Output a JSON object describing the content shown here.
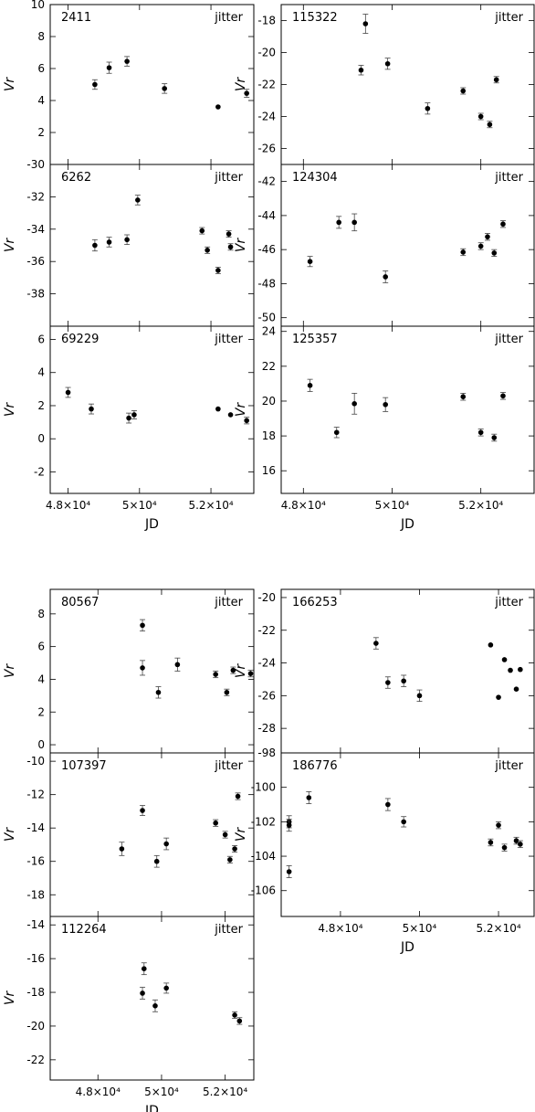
{
  "chart_data": [
    {
      "type": "scatter",
      "id": "2411",
      "annotation": "jitter",
      "ylabel": "Vr",
      "ylim": [
        0,
        10
      ],
      "yticks": [
        2,
        4,
        6,
        8,
        10
      ],
      "xlim": [
        47500,
        53200
      ],
      "xticks": [
        48000,
        50000,
        52000
      ],
      "points": [
        {
          "x": 48750,
          "y": 5.0,
          "err": 0.3
        },
        {
          "x": 49150,
          "y": 6.05,
          "err": 0.35
        },
        {
          "x": 49650,
          "y": 6.45,
          "err": 0.3
        },
        {
          "x": 50700,
          "y": 4.75,
          "err": 0.3
        },
        {
          "x": 52200,
          "y": 3.6,
          "err": 0.05
        },
        {
          "x": 53000,
          "y": 4.45,
          "err": 0.25
        }
      ]
    },
    {
      "type": "scatter",
      "id": "6262",
      "annotation": "jitter",
      "ylabel": "Vr",
      "ylim": [
        -40,
        -30
      ],
      "yticks": [
        -38,
        -36,
        -34,
        -32,
        -30
      ],
      "xlim": [
        47500,
        53200
      ],
      "xticks": [
        48000,
        50000,
        52000
      ],
      "points": [
        {
          "x": 48750,
          "y": -35.0,
          "err": 0.35
        },
        {
          "x": 49150,
          "y": -34.8,
          "err": 0.3
        },
        {
          "x": 49650,
          "y": -34.65,
          "err": 0.3
        },
        {
          "x": 49950,
          "y": -32.2,
          "err": 0.3
        },
        {
          "x": 51750,
          "y": -34.1,
          "err": 0.2
        },
        {
          "x": 51900,
          "y": -35.3,
          "err": 0.2
        },
        {
          "x": 52200,
          "y": -36.55,
          "err": 0.2
        },
        {
          "x": 52500,
          "y": -34.3,
          "err": 0.2
        },
        {
          "x": 52550,
          "y": -35.1,
          "err": 0.2
        }
      ]
    },
    {
      "type": "scatter",
      "id": "69229",
      "annotation": "jitter",
      "ylabel": "Vr",
      "ylim": [
        -3.3,
        6.8
      ],
      "yticks": [
        -2,
        0,
        2,
        4,
        6
      ],
      "xlim": [
        47500,
        53200
      ],
      "xticks": [
        48000,
        50000,
        52000
      ],
      "xlabel": "JD",
      "xtick_labels": [
        "4.8×10⁴",
        "5×10⁴",
        "5.2×10⁴"
      ],
      "points": [
        {
          "x": 48000,
          "y": 2.8,
          "err": 0.3
        },
        {
          "x": 48650,
          "y": 1.8,
          "err": 0.3
        },
        {
          "x": 49700,
          "y": 1.25,
          "err": 0.3
        },
        {
          "x": 49850,
          "y": 1.45,
          "err": 0.25
        },
        {
          "x": 52200,
          "y": 1.8,
          "err": 0.05
        },
        {
          "x": 52550,
          "y": 1.45,
          "err": 0.05
        },
        {
          "x": 53000,
          "y": 1.1,
          "err": 0.2
        }
      ]
    },
    {
      "type": "scatter",
      "id": "115322",
      "annotation": "jitter",
      "ylabel": "Vr",
      "ylim": [
        -27,
        -17
      ],
      "yticks": [
        -26,
        -24,
        -22,
        -20,
        -18
      ],
      "xlim": [
        47500,
        53200
      ],
      "xticks": [
        48000,
        50000,
        52000
      ],
      "points": [
        {
          "x": 49300,
          "y": -21.1,
          "err": 0.3
        },
        {
          "x": 49400,
          "y": -18.2,
          "err": 0.6
        },
        {
          "x": 49900,
          "y": -20.7,
          "err": 0.35
        },
        {
          "x": 50800,
          "y": -23.5,
          "err": 0.35
        },
        {
          "x": 51600,
          "y": -22.4,
          "err": 0.2
        },
        {
          "x": 52000,
          "y": -24.0,
          "err": 0.2
        },
        {
          "x": 52200,
          "y": -24.5,
          "err": 0.2
        },
        {
          "x": 52350,
          "y": -21.7,
          "err": 0.2
        }
      ]
    },
    {
      "type": "scatter",
      "id": "124304",
      "annotation": "jitter",
      "ylabel": "Vr",
      "ylim": [
        -50.5,
        -41
      ],
      "yticks": [
        -50,
        -48,
        -46,
        -44,
        -42
      ],
      "xlim": [
        47500,
        53200
      ],
      "xticks": [
        48000,
        50000,
        52000
      ],
      "points": [
        {
          "x": 48150,
          "y": -46.7,
          "err": 0.3
        },
        {
          "x": 48800,
          "y": -44.4,
          "err": 0.35
        },
        {
          "x": 49150,
          "y": -44.4,
          "err": 0.5
        },
        {
          "x": 49850,
          "y": -47.6,
          "err": 0.35
        },
        {
          "x": 51600,
          "y": -46.15,
          "err": 0.2
        },
        {
          "x": 52000,
          "y": -45.8,
          "err": 0.2
        },
        {
          "x": 52150,
          "y": -45.25,
          "err": 0.2
        },
        {
          "x": 52300,
          "y": -46.2,
          "err": 0.2
        },
        {
          "x": 52500,
          "y": -44.5,
          "err": 0.2
        }
      ]
    },
    {
      "type": "scatter",
      "id": "125357",
      "annotation": "jitter",
      "ylabel": "Vr",
      "ylim": [
        14.7,
        24.3
      ],
      "yticks": [
        16,
        18,
        20,
        22,
        24
      ],
      "xlim": [
        47500,
        53200
      ],
      "xticks": [
        48000,
        50000,
        52000
      ],
      "xlabel": "JD",
      "xtick_labels": [
        "4.8×10⁴",
        "5×10⁴",
        "5.2×10⁴"
      ],
      "points": [
        {
          "x": 48150,
          "y": 20.9,
          "err": 0.35
        },
        {
          "x": 48750,
          "y": 18.2,
          "err": 0.3
        },
        {
          "x": 49150,
          "y": 19.85,
          "err": 0.6
        },
        {
          "x": 49850,
          "y": 19.8,
          "err": 0.4
        },
        {
          "x": 51600,
          "y": 20.25,
          "err": 0.2
        },
        {
          "x": 52000,
          "y": 18.2,
          "err": 0.2
        },
        {
          "x": 52300,
          "y": 17.9,
          "err": 0.2
        },
        {
          "x": 52500,
          "y": 20.3,
          "err": 0.2
        }
      ]
    },
    {
      "type": "scatter",
      "id": "80567",
      "annotation": "jitter",
      "ylabel": "Vr",
      "ylim": [
        -0.5,
        9.5
      ],
      "yticks": [
        0,
        2,
        4,
        6,
        8
      ],
      "xlim": [
        46500,
        52900
      ],
      "xticks": [
        48000,
        50000,
        52000
      ],
      "points": [
        {
          "x": 49400,
          "y": 7.3,
          "err": 0.35
        },
        {
          "x": 49400,
          "y": 4.7,
          "err": 0.45
        },
        {
          "x": 49900,
          "y": 3.2,
          "err": 0.35
        },
        {
          "x": 50500,
          "y": 4.9,
          "err": 0.4
        },
        {
          "x": 51700,
          "y": 4.3,
          "err": 0.2
        },
        {
          "x": 52050,
          "y": 3.2,
          "err": 0.2
        },
        {
          "x": 52250,
          "y": 4.55,
          "err": 0.2
        },
        {
          "x": 52800,
          "y": 4.35,
          "err": 0.2
        }
      ]
    },
    {
      "type": "scatter",
      "id": "107397",
      "annotation": "jitter",
      "ylabel": "Vr",
      "ylim": [
        -19.3,
        -9.5
      ],
      "yticks": [
        -18,
        -16,
        -14,
        -12,
        -10
      ],
      "xlim": [
        46500,
        52900
      ],
      "xticks": [
        48000,
        50000,
        52000
      ],
      "points": [
        {
          "x": 48750,
          "y": -15.25,
          "err": 0.4
        },
        {
          "x": 49400,
          "y": -12.95,
          "err": 0.3
        },
        {
          "x": 49850,
          "y": -16.0,
          "err": 0.35
        },
        {
          "x": 50150,
          "y": -14.95,
          "err": 0.35
        },
        {
          "x": 51700,
          "y": -13.7,
          "err": 0.2
        },
        {
          "x": 52000,
          "y": -14.4,
          "err": 0.2
        },
        {
          "x": 52150,
          "y": -15.9,
          "err": 0.2
        },
        {
          "x": 52300,
          "y": -15.25,
          "err": 0.2
        },
        {
          "x": 52400,
          "y": -12.1,
          "err": 0.2
        }
      ]
    },
    {
      "type": "scatter",
      "id": "112264",
      "annotation": "jitter",
      "ylabel": "Vr",
      "ylim": [
        -23.2,
        -13.5
      ],
      "yticks": [
        -22,
        -20,
        -18,
        -16,
        -14
      ],
      "xlim": [
        46500,
        52900
      ],
      "xticks": [
        48000,
        50000,
        52000
      ],
      "xlabel": "JD",
      "xtick_labels": [
        "4.8×10⁴",
        "5×10⁴",
        "5.2×10⁴"
      ],
      "points": [
        {
          "x": 49400,
          "y": -18.05,
          "err": 0.35
        },
        {
          "x": 49450,
          "y": -16.6,
          "err": 0.35
        },
        {
          "x": 49800,
          "y": -18.8,
          "err": 0.35
        },
        {
          "x": 50150,
          "y": -17.75,
          "err": 0.3
        },
        {
          "x": 52300,
          "y": -19.35,
          "err": 0.2
        },
        {
          "x": 52450,
          "y": -19.7,
          "err": 0.2
        }
      ]
    },
    {
      "type": "scatter",
      "id": "166253",
      "annotation": "jitter",
      "ylabel": "Vr",
      "ylim": [
        -29.5,
        -19.5
      ],
      "yticks": [
        -28,
        -26,
        -24,
        -22,
        -20
      ],
      "xlim": [
        46500,
        52900
      ],
      "xticks": [
        48000,
        50000,
        52000
      ],
      "points": [
        {
          "x": 48900,
          "y": -22.8,
          "err": 0.35
        },
        {
          "x": 49200,
          "y": -25.2,
          "err": 0.35
        },
        {
          "x": 49600,
          "y": -25.1,
          "err": 0.35
        },
        {
          "x": 50000,
          "y": -26.0,
          "err": 0.35
        },
        {
          "x": 51800,
          "y": -22.9,
          "err": 0.05
        },
        {
          "x": 52000,
          "y": -26.1,
          "err": 0.05
        },
        {
          "x": 52150,
          "y": -23.8,
          "err": 0.05
        },
        {
          "x": 52300,
          "y": -24.45,
          "err": 0.05
        },
        {
          "x": 52450,
          "y": -25.6,
          "err": 0.05
        },
        {
          "x": 52550,
          "y": -24.4,
          "err": 0.05
        }
      ]
    },
    {
      "type": "scatter",
      "id": "186776",
      "annotation": "jitter",
      "ylabel": "Vr",
      "ylim": [
        -107.5,
        -98
      ],
      "yticks": [
        -106,
        -104,
        -102,
        -100,
        -98
      ],
      "xlim": [
        46500,
        52900
      ],
      "xticks": [
        48000,
        50000,
        52000
      ],
      "xlabel": "JD",
      "xtick_labels": [
        "4.8×10⁴",
        "5×10⁴",
        "5.2×10⁴"
      ],
      "points": [
        {
          "x": 46700,
          "y": -104.9,
          "err": 0.35
        },
        {
          "x": 46700,
          "y": -102.0,
          "err": 0.35
        },
        {
          "x": 46700,
          "y": -102.2,
          "err": 0.35
        },
        {
          "x": 47200,
          "y": -100.6,
          "err": 0.35
        },
        {
          "x": 49200,
          "y": -101.0,
          "err": 0.35
        },
        {
          "x": 49600,
          "y": -102.0,
          "err": 0.3
        },
        {
          "x": 51800,
          "y": -103.2,
          "err": 0.2
        },
        {
          "x": 52000,
          "y": -102.2,
          "err": 0.2
        },
        {
          "x": 52150,
          "y": -103.5,
          "err": 0.2
        },
        {
          "x": 52450,
          "y": -103.1,
          "err": 0.2
        },
        {
          "x": 52550,
          "y": -103.3,
          "err": 0.2
        }
      ]
    }
  ]
}
